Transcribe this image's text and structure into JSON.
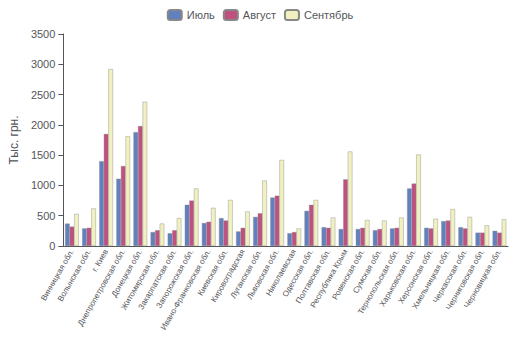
{
  "chart_data": {
    "type": "bar",
    "categories": [
      "Винницкая обл.",
      "Волынская обл.",
      "г. Киев",
      "Днепропетровская обл.",
      "Донецкая обл.",
      "Житомирская обл.",
      "Закарпатская обл.",
      "Запорожская обл.",
      "Ивано-Франковская обл.",
      "Киевская обл.",
      "Кировоградская",
      "Луганская обл.",
      "Львовская обл.",
      "Николаевская",
      "Одесская обл.",
      "Полтавская обл.",
      "Республика Крым",
      "Ровенская обл.",
      "Сумская обл.",
      "Тернопольская обл.",
      "Харьковская обл.",
      "Херсонская обл.",
      "Хмельницкая обл.",
      "Черкасская обл.",
      "Черниговская обл.",
      "Черновицкая обл."
    ],
    "series": [
      {
        "name": "Июль",
        "color": "#6080c0",
        "values": [
          370,
          290,
          1400,
          1110,
          1880,
          230,
          210,
          680,
          380,
          460,
          240,
          480,
          800,
          210,
          580,
          310,
          280,
          280,
          260,
          290,
          950,
          300,
          410,
          310,
          220,
          250
        ]
      },
      {
        "name": "Август",
        "color": "#c05080",
        "values": [
          320,
          300,
          1850,
          1320,
          1980,
          260,
          260,
          750,
          400,
          420,
          300,
          540,
          830,
          230,
          680,
          300,
          1100,
          300,
          280,
          300,
          1030,
          290,
          420,
          290,
          220,
          220
        ]
      },
      {
        "name": "Сентябрь",
        "color": "#f0f0c0",
        "values": [
          530,
          620,
          2920,
          1810,
          2380,
          370,
          460,
          950,
          630,
          760,
          570,
          1080,
          1420,
          290,
          760,
          470,
          1560,
          430,
          420,
          470,
          1510,
          450,
          610,
          480,
          340,
          440
        ]
      }
    ],
    "ylabel": "Тыс. грн.",
    "ylim": [
      0,
      3500
    ],
    "yticks": [
      0,
      500,
      1000,
      1500,
      2000,
      2500,
      3000,
      3500
    ],
    "grid": false,
    "legend": "top"
  }
}
